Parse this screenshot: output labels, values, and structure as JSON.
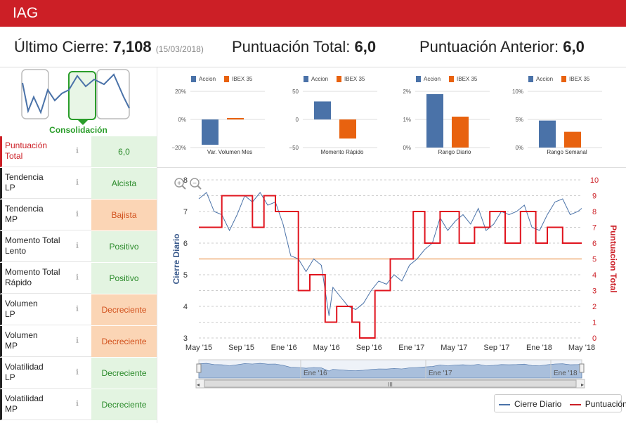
{
  "header": {
    "title": "IAG"
  },
  "summary": {
    "ultimo_label": "Último Cierre:",
    "ultimo_value": "7,108",
    "ultimo_date": "(15/03/2018)",
    "total_label": "Puntuación Total:",
    "total_value": "6,0",
    "anterior_label": "Puntuación Anterior:",
    "anterior_value": "6,0"
  },
  "thumbnail": {
    "label": "Consolidación"
  },
  "indicators": [
    {
      "label": "Puntuación Total",
      "value": "6,0",
      "tone": "green"
    },
    {
      "label": "Tendencia LP",
      "value": "Alcista",
      "tone": "green"
    },
    {
      "label": "Tendencia MP",
      "value": "Bajista",
      "tone": "orange"
    },
    {
      "label": "Momento Total Lento",
      "value": "Positivo",
      "tone": "green"
    },
    {
      "label": "Momento Total Rápido",
      "value": "Positivo",
      "tone": "green"
    },
    {
      "label": "Volumen LP",
      "value": "Decreciente",
      "tone": "orange"
    },
    {
      "label": "Volumen MP",
      "value": "Decreciente",
      "tone": "orange"
    },
    {
      "label": "Volatilidad LP",
      "value": "Decreciente",
      "tone": "green"
    },
    {
      "label": "Volatilidad MP",
      "value": "Decreciente",
      "tone": "green"
    }
  ],
  "info_icon": "info-icon",
  "colors": {
    "accent": "#cc1f26",
    "accion": "#4a72a8",
    "ibex": "#e8620f",
    "green_bg": "#e3f4e1",
    "orange_bg": "#fbd5b5"
  },
  "chart_data": [
    {
      "type": "bar",
      "title": "Var. Volumen Mes",
      "series": [
        {
          "name": "Accion",
          "values": [
            -18
          ]
        },
        {
          "name": "IBEX 35",
          "values": [
            1
          ]
        }
      ],
      "yticks": [
        "20%",
        "0%",
        "−20%"
      ],
      "ylim": [
        -20,
        20
      ]
    },
    {
      "type": "bar",
      "title": "Momento Rápido",
      "series": [
        {
          "name": "Accion",
          "values": [
            32
          ]
        },
        {
          "name": "IBEX 35",
          "values": [
            -34
          ]
        }
      ],
      "yticks": [
        "50",
        "0",
        "−50"
      ],
      "ylim": [
        -50,
        50
      ]
    },
    {
      "type": "bar",
      "title": "Rango Diario",
      "series": [
        {
          "name": "Accion",
          "values": [
            1.9
          ]
        },
        {
          "name": "IBEX 35",
          "values": [
            1.1
          ]
        }
      ],
      "yticks": [
        "2%",
        "1%",
        "0%"
      ],
      "ylim": [
        0,
        2
      ]
    },
    {
      "type": "bar",
      "title": "Rango Semanal",
      "series": [
        {
          "name": "Accion",
          "values": [
            4.8
          ]
        },
        {
          "name": "IBEX 35",
          "values": [
            2.8
          ]
        }
      ],
      "yticks": [
        "10%",
        "5%",
        "0%"
      ],
      "ylim": [
        0,
        10
      ]
    },
    {
      "type": "line",
      "title": "",
      "ylabel": "Cierre Diario",
      "y2label": "Puntuacion Total",
      "ylim": [
        3,
        8
      ],
      "y2lim": [
        0,
        10
      ],
      "yticks": [
        "8",
        "7",
        "6",
        "5",
        "4",
        "3"
      ],
      "y2ticks": [
        "10",
        "9",
        "8",
        "7",
        "6",
        "5",
        "4",
        "3",
        "2",
        "1",
        "0"
      ],
      "xticks": [
        "May '15",
        "Sep '15",
        "Ene '16",
        "May '16",
        "Sep '16",
        "Ene '17",
        "May '17",
        "Sep '17",
        "Ene '18",
        "May '18"
      ],
      "navigator_ticks": [
        "Ene '16",
        "Ene '17",
        "Ene '18"
      ],
      "reference_line_y2": 5,
      "series": [
        {
          "name": "Cierre Diario",
          "axis": "left",
          "x": [
            0,
            2,
            4,
            6,
            8,
            10,
            12,
            14,
            16,
            18,
            20,
            22,
            24,
            26,
            28,
            30,
            32,
            34,
            35,
            37,
            39,
            41,
            43,
            45,
            47,
            49,
            51,
            53,
            55,
            57,
            59,
            61,
            63,
            65,
            67,
            69,
            71,
            73,
            75,
            77,
            79,
            81,
            83,
            85,
            87,
            89,
            91,
            93,
            95,
            97,
            99,
            100
          ],
          "y": [
            7.4,
            7.6,
            7.0,
            6.9,
            6.4,
            6.9,
            7.5,
            7.3,
            7.6,
            7.2,
            7.3,
            6.6,
            5.6,
            5.5,
            5.1,
            5.5,
            5.3,
            3.7,
            4.6,
            4.3,
            4.0,
            3.9,
            4.1,
            4.5,
            4.8,
            4.7,
            5.0,
            4.8,
            5.3,
            5.5,
            5.8,
            6.0,
            6.8,
            6.4,
            6.7,
            6.9,
            6.6,
            7.1,
            6.4,
            6.6,
            7.0,
            6.9,
            7.0,
            7.2,
            6.5,
            6.4,
            6.9,
            7.3,
            7.4,
            6.9,
            7.0,
            7.1
          ]
        },
        {
          "name": "Puntuación",
          "axis": "right",
          "x": [
            0,
            6,
            6,
            14,
            14,
            17,
            17,
            20,
            20,
            26,
            26,
            29,
            29,
            33,
            33,
            36,
            36,
            40,
            40,
            42,
            42,
            46,
            46,
            50,
            50,
            56,
            56,
            59,
            59,
            63,
            63,
            68,
            68,
            72,
            72,
            76,
            76,
            80,
            80,
            84,
            84,
            88,
            88,
            91,
            91,
            95,
            95,
            100
          ],
          "y": [
            7,
            7,
            9,
            9,
            7,
            7,
            9,
            9,
            8,
            8,
            3,
            3,
            4,
            4,
            1,
            1,
            2,
            2,
            1,
            1,
            0,
            0,
            3,
            3,
            5,
            5,
            8,
            8,
            6,
            6,
            8,
            8,
            6,
            6,
            7,
            7,
            8,
            8,
            6,
            6,
            8,
            8,
            6,
            6,
            7,
            7,
            6,
            6
          ]
        }
      ]
    }
  ],
  "legend": {
    "cierre": "Cierre Diario",
    "puntuacion": "Puntuación"
  },
  "zoom": {
    "in": "zoom-in-icon",
    "out": "zoom-out-icon"
  },
  "scroll_grip": "III"
}
